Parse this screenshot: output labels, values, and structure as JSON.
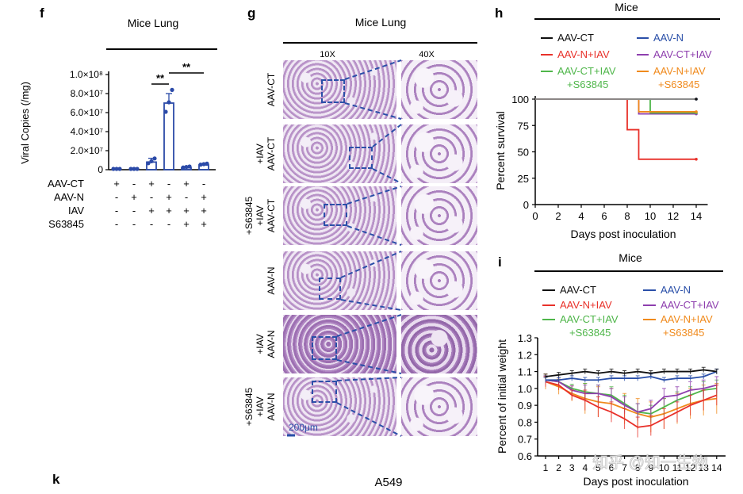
{
  "colors": {
    "ct": "#111111",
    "n": "#2a4fa8",
    "niav": "#e8312a",
    "ctiav": "#8e3fae",
    "ctiavs": "#4fb64a",
    "niavs": "#f08a1c",
    "bar": "#2b4aa8",
    "dash": "#2a4fa8"
  },
  "panels": {
    "f": "f",
    "g": "g",
    "h": "h",
    "i": "i",
    "k": "k"
  },
  "f": {
    "title": "Mice Lung",
    "ylabel": "Viral Copies (/mg)",
    "yticks": [
      "0",
      "2.0×10⁷",
      "4.0×10⁷",
      "6.0×10⁷",
      "8.0×10⁷",
      "1.0×10⁸"
    ],
    "sig": [
      "**",
      "**"
    ],
    "rows": [
      {
        "label": "AAV-CT",
        "marks": [
          "+",
          "-",
          "+",
          "-",
          "+",
          "-"
        ]
      },
      {
        "label": "AAV-N",
        "marks": [
          "-",
          "+",
          "-",
          "+",
          "-",
          "+"
        ]
      },
      {
        "label": "IAV",
        "marks": [
          "-",
          "-",
          "+",
          "+",
          "+",
          "+"
        ]
      },
      {
        "label": "S63845",
        "marks": [
          "-",
          "-",
          "-",
          "-",
          "+",
          "+"
        ]
      }
    ]
  },
  "chart_data": [
    {
      "type": "bar",
      "title": "Mice Lung",
      "ylabel": "Viral Copies (/mg)",
      "ylim": [
        0,
        100000000
      ],
      "categories": [
        "AAV-CT",
        "AAV-N",
        "AAV-CT+IAV",
        "AAV-N+IAV",
        "AAV-CT+IAV+S63845",
        "AAV-N+IAV+S63845"
      ],
      "values": [
        0,
        0,
        8000000,
        70000000,
        2000000,
        5000000
      ],
      "errors": [
        0,
        0,
        4000000,
        10000000,
        800000,
        1000000
      ],
      "points": [
        [
          0,
          0,
          0
        ],
        [
          0,
          0,
          0
        ],
        [
          6000000,
          8000000,
          11000000
        ],
        [
          60000000,
          70000000,
          83000000
        ],
        [
          1500000,
          2000000,
          2500000
        ],
        [
          4500000,
          5000000,
          5500000
        ]
      ]
    },
    {
      "type": "line",
      "title": "Mice",
      "xlabel": "Days post inoculation",
      "ylabel": "Percent survival",
      "xlim": [
        0,
        15
      ],
      "ylim": [
        0,
        100
      ],
      "xticks": [
        "0",
        "2",
        "4",
        "6",
        "8",
        "10",
        "12",
        "14"
      ],
      "yticks": [
        "0",
        "25",
        "50",
        "75",
        "100"
      ],
      "legend": [
        "AAV-CT",
        "AAV-N",
        "AAV-N+IAV",
        "AAV-CT+IAV",
        "AAV-CT+IAV\n+S63845",
        "AAV-N+IAV\n+S63845"
      ],
      "series": [
        {
          "name": "AAV-CT",
          "color": "#111111",
          "x": [
            0,
            14
          ],
          "y": [
            100,
            100
          ]
        },
        {
          "name": "AAV-N",
          "color": "#2a4fa8",
          "x": [
            0,
            14
          ],
          "y": [
            100,
            100
          ]
        },
        {
          "name": "AAV-N+IAV",
          "color": "#e8312a",
          "x": [
            0,
            8,
            8,
            9,
            9,
            14
          ],
          "y": [
            100,
            100,
            71,
            71,
            43,
            43
          ]
        },
        {
          "name": "AAV-CT+IAV",
          "color": "#8e3fae",
          "x": [
            0,
            9,
            9,
            14
          ],
          "y": [
            100,
            100,
            86,
            86
          ]
        },
        {
          "name": "AAV-CT+IAV+S63845",
          "color": "#4fb64a",
          "x": [
            0,
            10,
            10,
            14
          ],
          "y": [
            100,
            100,
            87,
            87
          ]
        },
        {
          "name": "AAV-N+IAV+S63845",
          "color": "#f08a1c",
          "x": [
            0,
            9,
            9,
            14
          ],
          "y": [
            100,
            100,
            88,
            88
          ]
        }
      ]
    },
    {
      "type": "line",
      "title": "Mice",
      "xlabel": "Days post inoculation",
      "ylabel": "Percent of initial weight",
      "ylim": [
        0.6,
        1.3
      ],
      "x": [
        1,
        2,
        3,
        4,
        5,
        6,
        7,
        8,
        9,
        10,
        11,
        12,
        13,
        14
      ],
      "xticks": [
        "1",
        "2",
        "3",
        "4",
        "5",
        "6",
        "7",
        "8",
        "9",
        "10",
        "11",
        "12",
        "13",
        "14"
      ],
      "yticks": [
        "0.6",
        "0.7",
        "0.8",
        "0.9",
        "1.0",
        "1.1",
        "1.2",
        "1.3"
      ],
      "series": [
        {
          "name": "AAV-CT",
          "color": "#111111",
          "y": [
            1.07,
            1.08,
            1.09,
            1.1,
            1.09,
            1.1,
            1.09,
            1.1,
            1.09,
            1.1,
            1.1,
            1.1,
            1.11,
            1.1
          ],
          "err": 0.03
        },
        {
          "name": "AAV-N",
          "color": "#2a4fa8",
          "y": [
            1.05,
            1.05,
            1.06,
            1.05,
            1.05,
            1.06,
            1.06,
            1.06,
            1.07,
            1.05,
            1.06,
            1.06,
            1.07,
            1.1
          ],
          "err": 0.03
        },
        {
          "name": "AAV-N+IAV",
          "color": "#e8312a",
          "y": [
            1.04,
            1.02,
            0.96,
            0.93,
            0.89,
            0.86,
            0.82,
            0.77,
            0.78,
            0.82,
            0.86,
            0.9,
            0.93,
            0.96
          ],
          "err": 0.06
        },
        {
          "name": "AAV-CT+IAV",
          "color": "#8e3fae",
          "y": [
            1.05,
            1.04,
            0.99,
            0.97,
            0.97,
            0.95,
            0.9,
            0.86,
            0.88,
            0.95,
            0.96,
            0.99,
            1.0,
            1.02
          ],
          "err": 0.05
        },
        {
          "name": "AAV-CT+IAV+S63845",
          "color": "#4fb64a",
          "y": [
            1.05,
            1.04,
            1.0,
            0.98,
            0.97,
            0.96,
            0.91,
            0.86,
            0.85,
            0.89,
            0.93,
            0.96,
            0.99,
            1.0
          ],
          "err": 0.05
        },
        {
          "name": "AAV-N+IAV+S63845",
          "color": "#f08a1c",
          "y": [
            1.04,
            1.01,
            0.97,
            0.94,
            0.92,
            0.91,
            0.88,
            0.85,
            0.83,
            0.85,
            0.88,
            0.91,
            0.93,
            0.94
          ],
          "err": 0.09
        }
      ]
    }
  ],
  "g": {
    "title": "Mice Lung",
    "col1": "10X",
    "col2": "40X",
    "scale": "200μm",
    "rows": [
      [
        "AAV-CT"
      ],
      [
        "+IAV",
        "AAV-CT"
      ],
      [
        "+S63845",
        "+IAV",
        "AAV-CT"
      ],
      [
        "AAV-N"
      ],
      [
        "+IAV",
        "AAV-N"
      ],
      [
        "+S63845",
        "+IAV",
        "AAV-N"
      ]
    ]
  },
  "i_legend": [
    "AAV-CT",
    "AAV-N",
    "AAV-N+IAV",
    "AAV-CT+IAV",
    "AAV-CT+IAV",
    "+S63845",
    "AAV-N+IAV",
    "+S63845"
  ],
  "k_title": "A549",
  "watermark": "知乎 @知一生物"
}
